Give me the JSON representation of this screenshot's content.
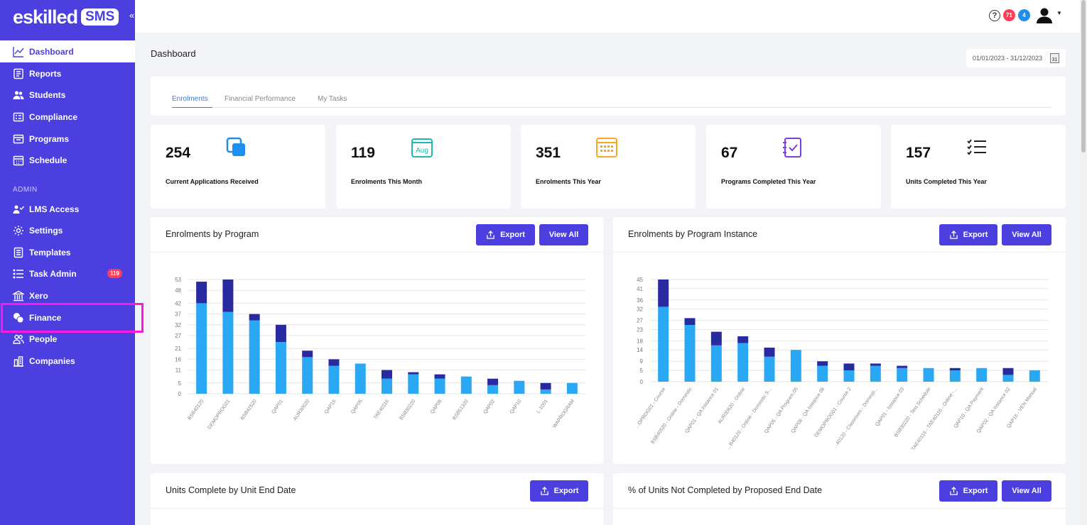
{
  "brand": {
    "logo_text": "eskilled",
    "logo_badge": "SMS",
    "collapse_glyph": "«"
  },
  "sidebar": {
    "items": [
      {
        "label": "Dashboard",
        "icon": "chart-line-icon"
      },
      {
        "label": "Reports",
        "icon": "reports-icon"
      },
      {
        "label": "Students",
        "icon": "users-icon"
      },
      {
        "label": "Compliance",
        "icon": "compliance-icon"
      },
      {
        "label": "Programs",
        "icon": "programs-icon"
      },
      {
        "label": "Schedule",
        "icon": "calendar-icon"
      }
    ],
    "admin_label": "ADMIN",
    "admin_items": [
      {
        "label": "LMS Access",
        "icon": "lms-icon"
      },
      {
        "label": "Settings",
        "icon": "gear-icon"
      },
      {
        "label": "Templates",
        "icon": "templates-icon"
      },
      {
        "label": "Task Admin",
        "icon": "tasks-icon",
        "badge": "119"
      },
      {
        "label": "Xero",
        "icon": "bank-icon"
      },
      {
        "label": "Finance",
        "icon": "coins-icon"
      },
      {
        "label": "People",
        "icon": "people-icon"
      },
      {
        "label": "Companies",
        "icon": "companies-icon"
      }
    ]
  },
  "header": {
    "help_glyph": "?",
    "badge_red": "71",
    "badge_blue": "4"
  },
  "page": {
    "title": "Dashboard",
    "date_range": "01/01/2023 - 31/12/2023",
    "calendar_day": "31"
  },
  "tabs": [
    "Enrolments",
    "Financial Performance",
    "My Tasks"
  ],
  "stats": [
    {
      "value": "254",
      "label": "Current Applications Received",
      "icon": "copy-squares-icon"
    },
    {
      "value": "119",
      "label": "Enrolments This Month",
      "icon": "calendar-month-icon",
      "icon_text": "Aug"
    },
    {
      "value": "351",
      "label": "Enrolments This Year",
      "icon": "calendar-grid-icon"
    },
    {
      "value": "67",
      "label": "Programs Completed This Year",
      "icon": "checklist-icon"
    },
    {
      "value": "157",
      "label": "Units Completed This Year",
      "icon": "list-check-icon"
    }
  ],
  "panels": {
    "p1": {
      "title": "Enrolments by Program",
      "export": "Export",
      "view_all": "View All"
    },
    "p2": {
      "title": "Enrolments by Program Instance",
      "export": "Export",
      "view_all": "View All"
    },
    "p3": {
      "title": "Units Complete by Unit End Date",
      "export": "Export"
    },
    "p4": {
      "title": "% of Units Not Completed by Proposed End Date",
      "export": "Export",
      "view_all": "View All"
    }
  },
  "colors": {
    "accent": "#4b3fe0",
    "bar_light": "#2ba8f4",
    "bar_dark": "#2a2aa0",
    "highlight": "#ff19e0"
  },
  "chart_data": [
    {
      "type": "bar",
      "title": "Enrolments by Program",
      "yticks": [
        0,
        5,
        11,
        16,
        21,
        27,
        32,
        37,
        42,
        48,
        53
      ],
      "ylim": [
        0,
        53
      ],
      "categories": [
        "BSB40120",
        "DEMOPROG01",
        "BSB42520",
        "QAP01",
        "AUR30620",
        "QAP16",
        "QAP05",
        "TAE40116",
        "BSB30220",
        "QAP08",
        "BSB51320",
        "QAP02",
        "QAP10",
        "L-1001",
        "WAPROGRAM"
      ],
      "series": [
        {
          "values": [
            42,
            38,
            34,
            24,
            17,
            13,
            14,
            7,
            9,
            7,
            8,
            4,
            6,
            2,
            5
          ]
        },
        {
          "values": [
            10,
            15,
            3,
            8,
            3,
            3,
            0,
            4,
            1,
            2,
            0,
            3,
            0,
            3,
            0
          ]
        }
      ]
    },
    {
      "type": "bar",
      "title": "Enrolments by Program Instance",
      "yticks": [
        0,
        5,
        9,
        14,
        18,
        23,
        27,
        32,
        36,
        41,
        45
      ],
      "ylim": [
        0,
        45
      ],
      "categories": [
        "...OPROG01 - Course",
        "BSB40520 - Online - Domestic",
        "QAP01 - QA Instance 01",
        "AUR30620 - Online",
        "...B40120 - Online - Domestic S...",
        "QAP05 - QA Program 05",
        "QAP08 - QA Instance 08",
        "DEMOPROG01 - Course 2",
        "...40120 - Classroom - Domesti...",
        "QAP01 - Instance 03",
        "BSB30220 - Test Schedule",
        "TAE40116 - TAE40116 - Online -...",
        "QAP10 - QA Payment",
        "QAP02 - QA Instance 02",
        "QAP16 - VEN Manual"
      ],
      "series": [
        {
          "values": [
            33,
            25,
            16,
            17,
            11,
            14,
            7,
            5,
            7,
            6,
            6,
            5,
            6,
            3,
            5
          ]
        },
        {
          "values": [
            12,
            3,
            6,
            3,
            4,
            0,
            2,
            3,
            1,
            1,
            0,
            1,
            0,
            3,
            0
          ]
        }
      ]
    }
  ]
}
